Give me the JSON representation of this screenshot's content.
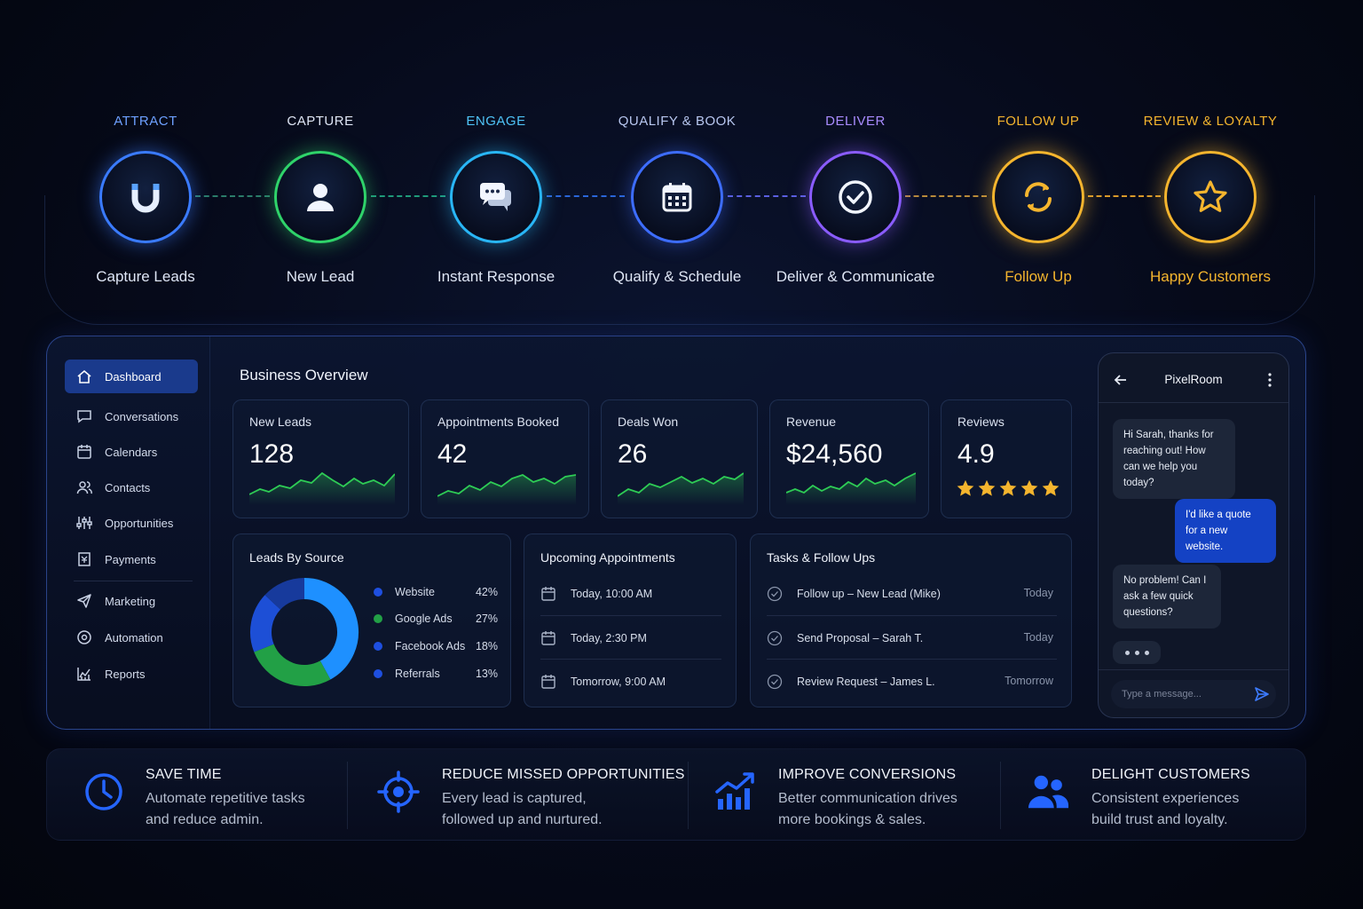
{
  "journey": {
    "stages": [
      {
        "title": "ATTRACT",
        "label": "Capture Leads",
        "icon": "magnet-icon",
        "color": "#3a7bff",
        "title_color": "#6ea0ff"
      },
      {
        "title": "CAPTURE",
        "label": "New Lead",
        "icon": "user-icon",
        "color": "#2fd36a",
        "title_color": "#dfe6f5"
      },
      {
        "title": "ENGAGE",
        "label": "Instant Response",
        "icon": "chat-bubbles-icon",
        "color": "#29b6f6",
        "title_color": "#4fc3f7"
      },
      {
        "title": "QUALIFY & BOOK",
        "label": "Qualify & Schedule",
        "icon": "calendar-icon",
        "color": "#3d6dff",
        "title_color": "#b8c7f0"
      },
      {
        "title": "DELIVER",
        "label": "Deliver & Communicate",
        "icon": "check-circle-icon",
        "color": "#8a5cff",
        "title_color": "#a98cff"
      },
      {
        "title": "FOLLOW UP",
        "label": "Follow Up",
        "icon": "refresh-icon",
        "color": "#f5b52e",
        "title_color": "#f5b52e"
      },
      {
        "title": "REVIEW & LOYALTY",
        "label": "Happy Customers",
        "icon": "star-icon",
        "color": "#f5b52e",
        "title_color": "#f5b52e"
      }
    ]
  },
  "sidebar": {
    "items": [
      {
        "label": "Dashboard",
        "icon": "home-icon",
        "active": true
      },
      {
        "label": "Conversations",
        "icon": "message-icon"
      },
      {
        "label": "Calendars",
        "icon": "calendar-icon"
      },
      {
        "label": "Contacts",
        "icon": "contacts-icon"
      },
      {
        "label": "Opportunities",
        "icon": "sliders-icon"
      },
      {
        "label": "Payments",
        "icon": "payments-icon"
      },
      {
        "label": "Marketing",
        "icon": "send-icon"
      },
      {
        "label": "Automation",
        "icon": "automation-icon"
      },
      {
        "label": "Reports",
        "icon": "reports-icon"
      }
    ]
  },
  "overview": {
    "title": "Business Overview",
    "stats": [
      {
        "label": "New Leads",
        "value": "128"
      },
      {
        "label": "Appointments Booked",
        "value": "42"
      },
      {
        "label": "Deals Won",
        "value": "26"
      },
      {
        "label": "Revenue",
        "value": "$24,560"
      },
      {
        "label": "Reviews",
        "value": "4.9",
        "stars": 5
      }
    ]
  },
  "leads_by_source": {
    "title": "Leads By Source",
    "sources": [
      {
        "name": "Website",
        "pct": "42%",
        "value": 42,
        "color": "#1e90ff"
      },
      {
        "name": "Google Ads",
        "pct": "27%",
        "value": 27,
        "color": "#22a046"
      },
      {
        "name": "Facebook Ads",
        "pct": "18%",
        "value": 18,
        "color": "#1d4fd6"
      },
      {
        "name": "Referrals",
        "pct": "13%",
        "value": 13,
        "color": "#173a9c"
      }
    ]
  },
  "appointments": {
    "title": "Upcoming Appointments",
    "items": [
      "Today, 10:00 AM",
      "Today, 2:30 PM",
      "Tomorrow, 9:00 AM"
    ]
  },
  "tasks": {
    "title": "Tasks & Follow Ups",
    "items": [
      {
        "label": "Follow up – New Lead (Mike)",
        "when": "Today"
      },
      {
        "label": "Send Proposal – Sarah T.",
        "when": "Today"
      },
      {
        "label": "Review Request – James L.",
        "when": "Tomorrow"
      }
    ]
  },
  "chat": {
    "title": "PixelRoom",
    "messages": [
      {
        "from": "in",
        "text": "Hi Sarah, thanks for reaching out! How can we help you today?"
      },
      {
        "from": "out",
        "text": "I'd like a quote for a new website."
      },
      {
        "from": "in",
        "text": "No problem! Can I ask a few quick questions?"
      }
    ],
    "placeholder": "Type a message..."
  },
  "benefits": [
    {
      "title": "SAVE TIME",
      "desc": "Automate repetitive tasks and reduce admin.",
      "icon": "clock-icon"
    },
    {
      "title": "REDUCE MISSED OPPORTUNITIES",
      "desc": "Every lead is captured, followed up and nurtured.",
      "icon": "target-icon"
    },
    {
      "title": "IMPROVE CONVERSIONS",
      "desc": "Better communication drives more bookings & sales.",
      "icon": "growth-chart-icon"
    },
    {
      "title": "DELIGHT CUSTOMERS",
      "desc": "Consistent experiences build trust and loyalty.",
      "icon": "users-icon"
    }
  ]
}
